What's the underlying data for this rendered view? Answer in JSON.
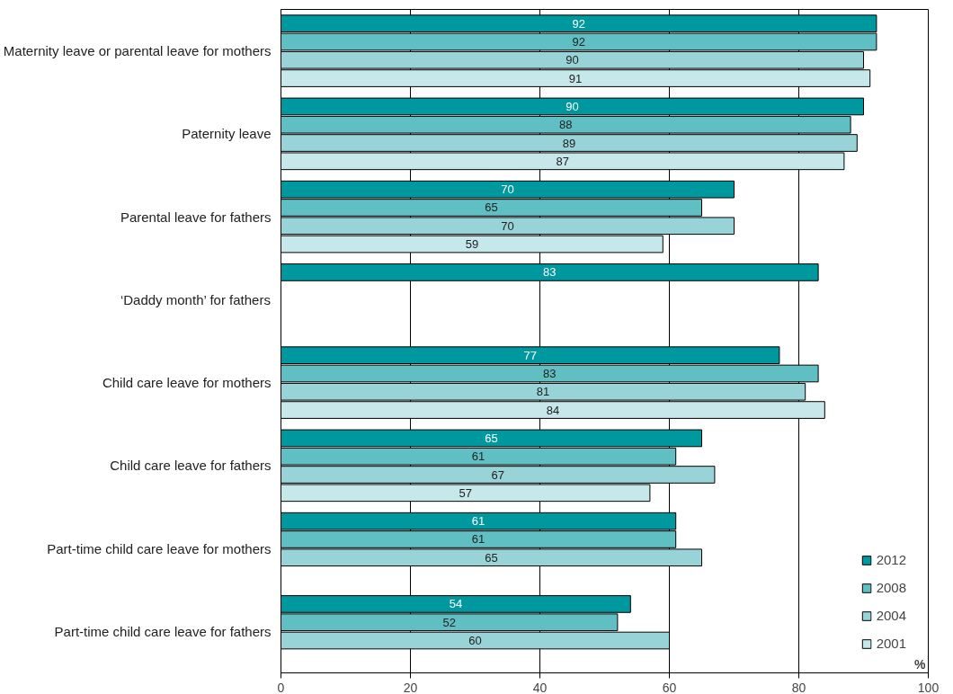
{
  "chart_data": {
    "type": "bar",
    "orientation": "horizontal",
    "xlabel": "%",
    "categories": [
      "Maternity leave or parental leave for mothers",
      "Paternity leave",
      "Parental leave for fathers",
      "‘Daddy month’ for fathers",
      "Child care leave for mothers",
      "Child care leave for fathers",
      "Part-time child care leave for mothers",
      "Part-time child care leave for fathers"
    ],
    "series": [
      {
        "name": "2012",
        "color": "#00989f",
        "values": [
          92,
          90,
          70,
          83,
          77,
          65,
          61,
          54
        ]
      },
      {
        "name": "2008",
        "color": "#5fbfc3",
        "values": [
          92,
          88,
          65,
          null,
          83,
          61,
          61,
          52
        ]
      },
      {
        "name": "2004",
        "color": "#98d4d7",
        "values": [
          90,
          89,
          70,
          null,
          81,
          67,
          65,
          60
        ]
      },
      {
        "name": "2001",
        "color": "#c6e8ea",
        "values": [
          91,
          87,
          59,
          null,
          84,
          57,
          null,
          null
        ]
      }
    ],
    "xlim": [
      0,
      100
    ],
    "xticks": [
      0,
      20,
      40,
      60,
      80,
      100
    ],
    "grid": "x",
    "legend": "bottom right",
    "data_labels": true
  }
}
